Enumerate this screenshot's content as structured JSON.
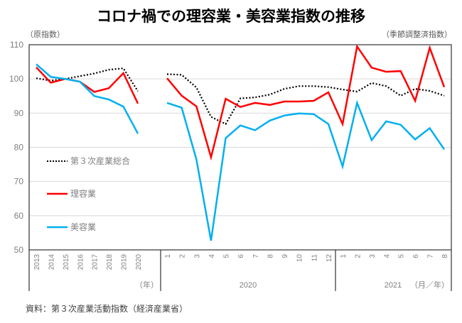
{
  "chart_data": {
    "type": "line",
    "title": "コロナ禍での理容業・美容業指数の推移",
    "left_unit_label": "（原指数）",
    "right_unit_label": "（季節調整済指数）",
    "ylim": [
      50,
      110
    ],
    "yticks": [
      50,
      60,
      70,
      80,
      90,
      100,
      110
    ],
    "grid": true,
    "legend_position": "left-middle",
    "source": "資料：第３次産業活動指数（経済産業省）",
    "segments": [
      {
        "name": "annual",
        "group_label": "",
        "unit_label": "（年）",
        "x": [
          "2013",
          "2014",
          "2015",
          "2016",
          "2017",
          "2018",
          "2019",
          "2020"
        ]
      },
      {
        "name": "monthly-2020",
        "group_label": "2020",
        "unit_label": "",
        "x": [
          "1",
          "2",
          "3",
          "4",
          "5",
          "6",
          "7",
          "8",
          "9",
          "10",
          "11",
          "12"
        ]
      },
      {
        "name": "monthly-2021",
        "group_label": "2021",
        "unit_label": "（月／年）",
        "x": [
          "1",
          "2",
          "3",
          "4",
          "5",
          "6",
          "7",
          "8"
        ]
      }
    ],
    "series": [
      {
        "name": "第３次産業総合",
        "color": "#000000",
        "style": "dotted",
        "annual": [
          100.2,
          99.5,
          100.0,
          100.8,
          101.6,
          102.7,
          103.1,
          96.4
        ],
        "monthly_2020": [
          101.4,
          101.2,
          97.5,
          88.9,
          86.8,
          94.3,
          94.6,
          95.4,
          97.1,
          97.9,
          97.9,
          97.6
        ],
        "monthly_2021": [
          96.9,
          96.3,
          98.8,
          97.9,
          95.1,
          97.1,
          96.5,
          95.1
        ]
      },
      {
        "name": "理容業",
        "color": "#ff0000",
        "style": "solid",
        "annual": [
          103.4,
          98.9,
          100.0,
          99.2,
          96.2,
          97.3,
          101.7,
          92.8
        ],
        "monthly_2020": [
          100.2,
          95.1,
          92.0,
          77.1,
          94.2,
          91.8,
          93.0,
          92.4,
          93.4,
          93.4,
          93.6,
          96.1
        ],
        "monthly_2021": [
          86.8,
          109.5,
          103.3,
          102.1,
          102.3,
          93.6,
          109.1,
          97.6
        ]
      },
      {
        "name": "美容業",
        "color": "#00b0f0",
        "style": "solid",
        "annual": [
          104.3,
          100.6,
          100.0,
          99.2,
          95.0,
          94.0,
          91.9,
          84.0
        ],
        "monthly_2020": [
          93.0,
          91.6,
          76.5,
          52.7,
          82.7,
          86.4,
          85.0,
          87.8,
          89.3,
          89.9,
          89.7,
          86.8
        ],
        "monthly_2021": [
          74.4,
          93.0,
          82.1,
          87.6,
          86.6,
          82.3,
          85.6,
          79.4
        ]
      }
    ]
  }
}
